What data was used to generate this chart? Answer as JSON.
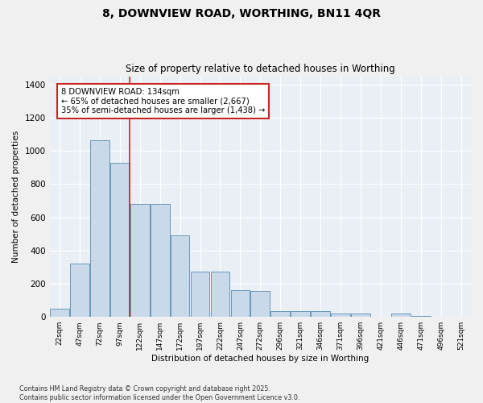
{
  "title1": "8, DOWNVIEW ROAD, WORTHING, BN11 4QR",
  "title2": "Size of property relative to detached houses in Worthing",
  "xlabel": "Distribution of detached houses by size in Worthing",
  "ylabel": "Number of detached properties",
  "categories": [
    "22sqm",
    "47sqm",
    "72sqm",
    "97sqm",
    "122sqm",
    "147sqm",
    "172sqm",
    "197sqm",
    "222sqm",
    "247sqm",
    "272sqm",
    "296sqm",
    "321sqm",
    "346sqm",
    "371sqm",
    "396sqm",
    "421sqm",
    "446sqm",
    "471sqm",
    "496sqm",
    "521sqm"
  ],
  "values": [
    50,
    320,
    1065,
    930,
    680,
    680,
    490,
    275,
    275,
    160,
    155,
    35,
    35,
    35,
    20,
    20,
    0,
    20,
    5,
    0,
    0
  ],
  "bar_color": "#c9d9ea",
  "bar_edge_color": "#6699bb",
  "bg_color": "#eaeff6",
  "grid_color": "#ffffff",
  "vline_x": 3.5,
  "vline_color": "#cc2222",
  "annotation_text": "8 DOWNVIEW ROAD: 134sqm\n← 65% of detached houses are smaller (2,667)\n35% of semi-detached houses are larger (1,438) →",
  "annotation_box_color": "#cc2222",
  "footer": "Contains HM Land Registry data © Crown copyright and database right 2025.\nContains public sector information licensed under the Open Government Licence v3.0.",
  "ylim": [
    0,
    1450
  ],
  "yticks": [
    0,
    200,
    400,
    600,
    800,
    1000,
    1200,
    1400
  ],
  "fig_width": 6.0,
  "fig_height": 5.0,
  "bg_fig_color": "#f0f0f0"
}
